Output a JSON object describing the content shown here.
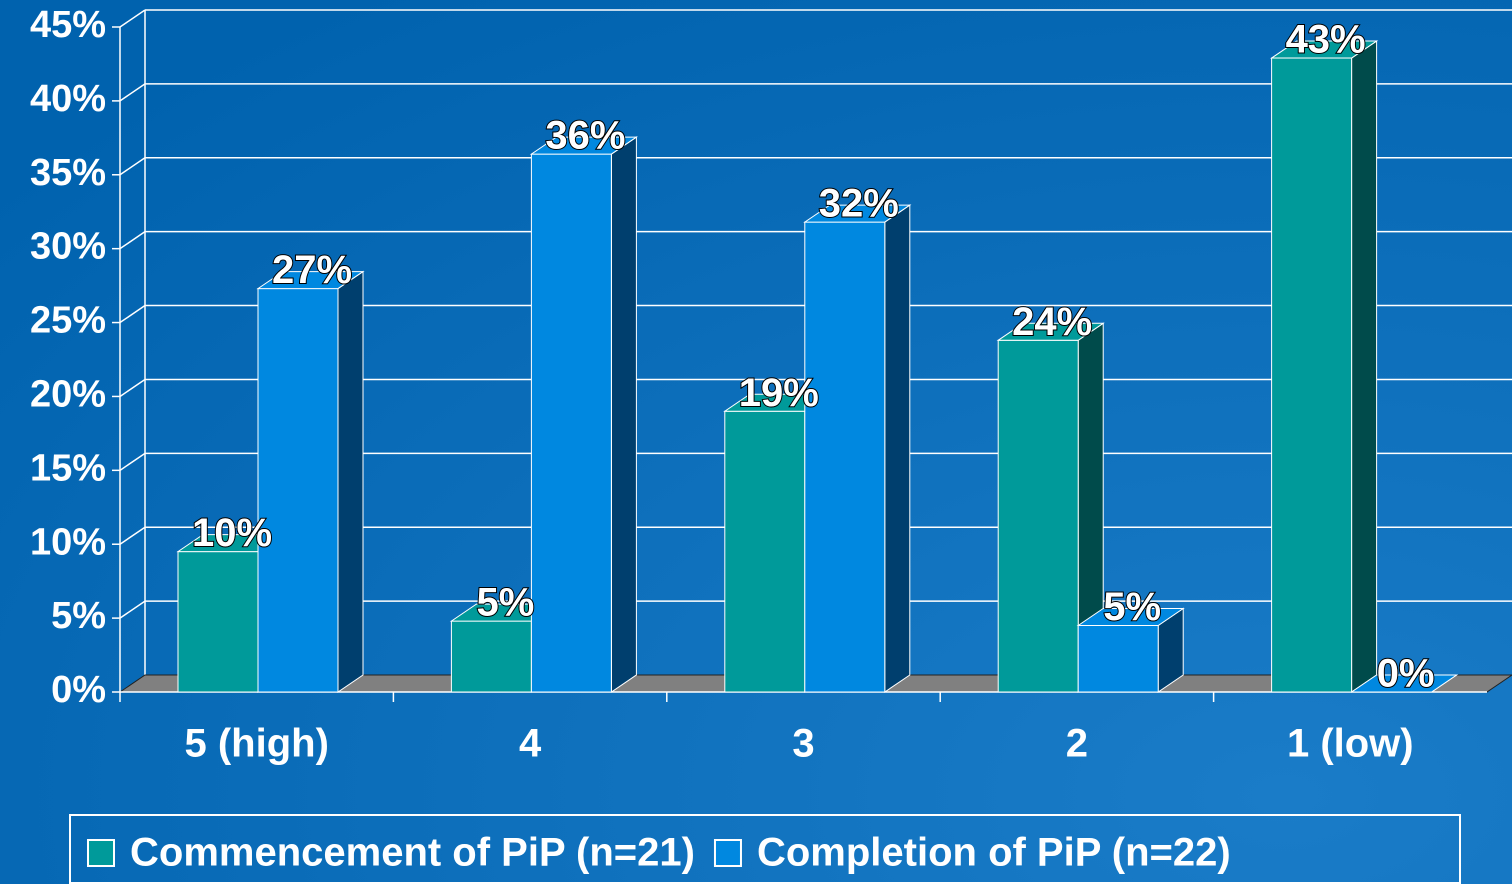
{
  "chart_data": {
    "type": "bar3d",
    "categories": [
      "5 (high)",
      "4",
      "3",
      "2",
      "1 (low)"
    ],
    "series": [
      {
        "name": "Commencement of PiP (n=21)",
        "color": "#009a9a",
        "side_color": "#004b4b",
        "values": [
          9.5,
          4.8,
          19.0,
          23.8,
          42.9
        ],
        "value_labels": [
          "10%",
          "5%",
          "19%",
          "24%",
          "43%"
        ]
      },
      {
        "name": "Completion of PiP (n=22)",
        "color": "#0088e0",
        "side_color": "#003f6e",
        "values": [
          27.3,
          36.4,
          31.8,
          4.5,
          0
        ],
        "value_labels": [
          "27%",
          "36%",
          "32%",
          "5%",
          "0%"
        ]
      }
    ],
    "ylim": [
      0,
      45
    ],
    "yticks": [
      {
        "value": 0,
        "label": "0%"
      },
      {
        "value": 5,
        "label": "5%"
      },
      {
        "value": 10,
        "label": "10%"
      },
      {
        "value": 15,
        "label": "15%"
      },
      {
        "value": 20,
        "label": "20%"
      },
      {
        "value": 25,
        "label": "25%"
      },
      {
        "value": 30,
        "label": "30%"
      },
      {
        "value": 35,
        "label": "35%"
      },
      {
        "value": 40,
        "label": "40%"
      },
      {
        "value": 45,
        "label": "45%"
      }
    ],
    "grid": true,
    "legend": "bottom"
  }
}
